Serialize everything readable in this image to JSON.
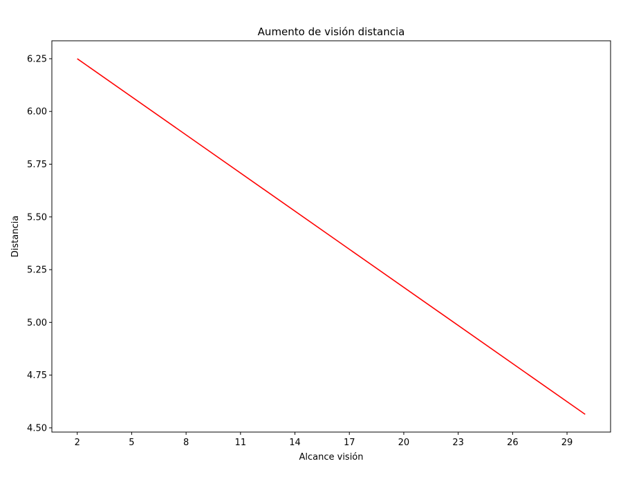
{
  "chart_data": {
    "type": "line",
    "title": "Aumento de visión distancia",
    "xlabel": "Alcance visión",
    "ylabel": "Distancia",
    "xlim": [
      0.6,
      31.4
    ],
    "ylim": [
      4.48,
      6.335
    ],
    "xticks": [
      2,
      5,
      8,
      11,
      14,
      17,
      20,
      23,
      26,
      29
    ],
    "yticks": [
      4.5,
      4.75,
      5.0,
      5.25,
      5.5,
      5.75,
      6.0,
      6.25
    ],
    "ytick_labels": [
      "4.50",
      "4.75",
      "5.00",
      "5.25",
      "5.50",
      "5.75",
      "6.00",
      "6.25"
    ],
    "grid": false,
    "series": [
      {
        "color": "#ff0000",
        "x": [
          2,
          30
        ],
        "y": [
          6.25,
          4.564
        ]
      }
    ]
  }
}
